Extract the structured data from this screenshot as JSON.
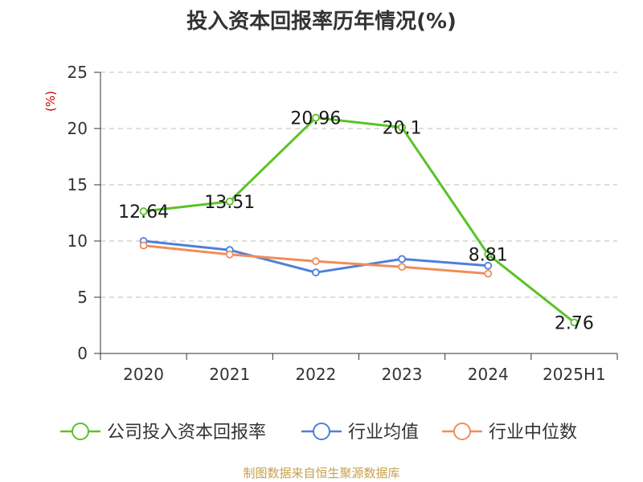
{
  "title": "投入资本回报率历年情况(%)",
  "source": "制图数据来自恒生聚源数据库",
  "chart_data": {
    "type": "line",
    "title": "投入资本回报率历年情况(%)",
    "ylabel": "(%)",
    "ylim": [
      0,
      25
    ],
    "yticks": [
      0,
      5,
      10,
      15,
      20,
      25
    ],
    "categories": [
      "2020",
      "2021",
      "2022",
      "2023",
      "2024",
      "2025H1"
    ],
    "grid": true,
    "legend_position": "bottom",
    "series": [
      {
        "name": "公司投入资本回报率",
        "color": "#5bc227",
        "values": [
          12.64,
          13.51,
          20.96,
          20.1,
          8.81,
          2.76
        ],
        "labels": [
          "12.64",
          "13.51",
          "20.96",
          "20.1",
          "8.81",
          "2.76"
        ]
      },
      {
        "name": "行业均值",
        "color": "#4f7fd9",
        "values": [
          10.0,
          9.2,
          7.2,
          8.4,
          7.8,
          null
        ]
      },
      {
        "name": "行业中位数",
        "color": "#f28c5a",
        "values": [
          9.6,
          8.8,
          8.2,
          7.7,
          7.1,
          null
        ]
      }
    ]
  }
}
